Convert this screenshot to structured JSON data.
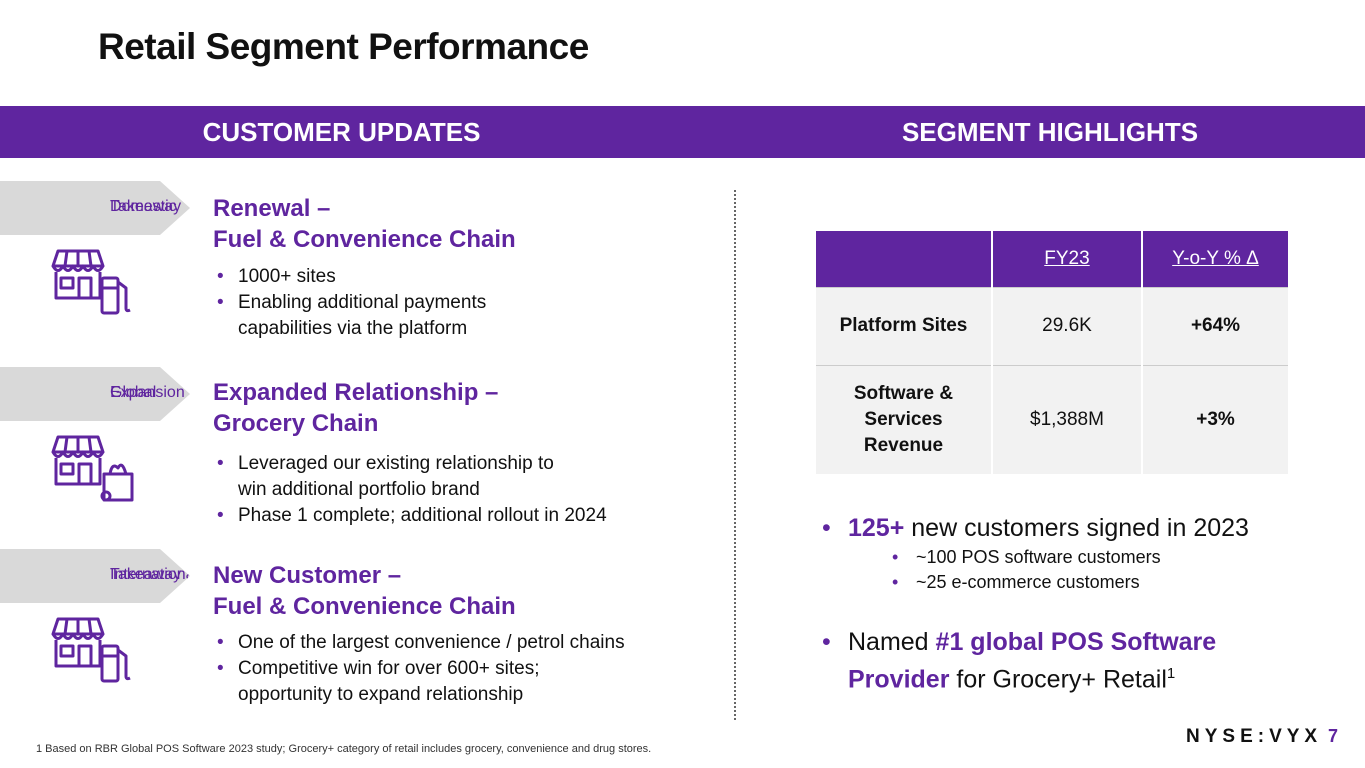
{
  "title": "Retail Segment Performance",
  "band": {
    "left": "CUSTOMER UPDATES",
    "right": "SEGMENT HIGHLIGHTS"
  },
  "customers": [
    {
      "tag_line1": "Domestic",
      "tag_line2": "Takeaway",
      "icon": "store-fuel-pump-icon",
      "title_line1": "Renewal –",
      "title_line2": "Fuel & Convenience Chain",
      "bullets": [
        "1000+ sites",
        "Enabling additional payments",
        "capabilities via the platform"
      ]
    },
    {
      "tag_line1": "Global",
      "tag_line2": "Expansion",
      "icon": "store-grocery-bag-icon",
      "title_line1": "Expanded Relationship –",
      "title_line2": "Grocery Chain",
      "bullets": [
        "Leveraged our existing relationship to",
        "win additional portfolio brand",
        "Phase 1 complete; additional rollout in 2024"
      ]
    },
    {
      "tag_line1": "International",
      "tag_line2": "Takeaway",
      "icon": "store-fuel-pump-icon",
      "title_line1": "New Customer –",
      "title_line2": "Fuel & Convenience Chain",
      "bullets": [
        "One of the largest convenience / petrol chains",
        "Competitive win for over 600+ sites;",
        "opportunity to expand relationship"
      ]
    }
  ],
  "table": {
    "headers": [
      "",
      "FY23",
      "Y-o-Y % Δ"
    ],
    "rows": [
      {
        "label_1": "Platform Sites",
        "label_2": "",
        "label_3": "",
        "value": "29.6K",
        "change": "+64%"
      },
      {
        "label_1": "Software &",
        "label_2": "Services",
        "label_3": "Revenue",
        "value": "$1,388M",
        "change": "+3%"
      }
    ]
  },
  "highlights": {
    "h1_bold": "125+",
    "h1_text": " new customers signed in 2023",
    "sub": [
      "~100 POS software customers",
      "~25 e-commerce customers"
    ],
    "h2_pre": "Named ",
    "h2_bold_1": "#1 global POS Software",
    "h2_bold_2": "Provider",
    "h2_post": " for Grocery+ Retail",
    "h2_sup": "1"
  },
  "footnote": "1 Based on RBR Global POS Software 2023 study; Grocery+ category of retail includes grocery, convenience and drug stores.",
  "logo": "NYSE:VYX",
  "page_number": "7",
  "colors": {
    "accent": "#5f259f",
    "tag_bg": "#d9d9d9",
    "table_bg": "#f2f2f2"
  }
}
